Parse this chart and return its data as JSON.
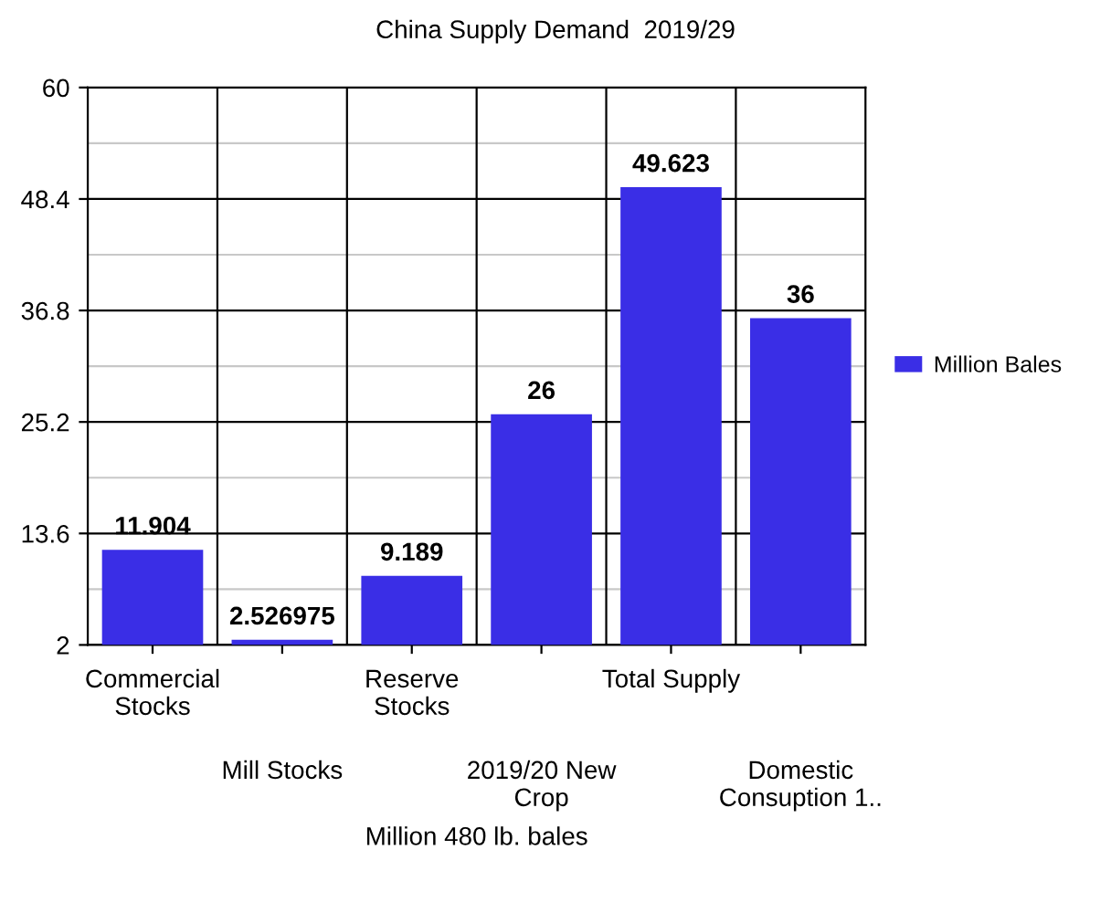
{
  "chart_data": {
    "type": "bar",
    "title": "China Supply Demand  2019/29",
    "xlabel": "Million 480 lb. bales",
    "categories": [
      "Commercial\nStocks",
      "Mill Stocks",
      "Reserve\nStocks",
      "2019/20 New\nCrop",
      "Total Supply",
      "Domestic\nConsuption 1.."
    ],
    "series": [
      {
        "name": "Million Bales",
        "color": "#3a2ee6",
        "values": [
          11.904,
          2.526975,
          9.189,
          26,
          49.623,
          36
        ]
      }
    ],
    "value_labels": [
      "11.904",
      "2.526975",
      "9.189",
      "26",
      "49.623",
      "36"
    ],
    "ylim": [
      2,
      60
    ],
    "yticks": [
      2,
      13.6,
      25.2,
      36.8,
      48.4,
      60
    ],
    "grid": true,
    "legend": "right"
  }
}
